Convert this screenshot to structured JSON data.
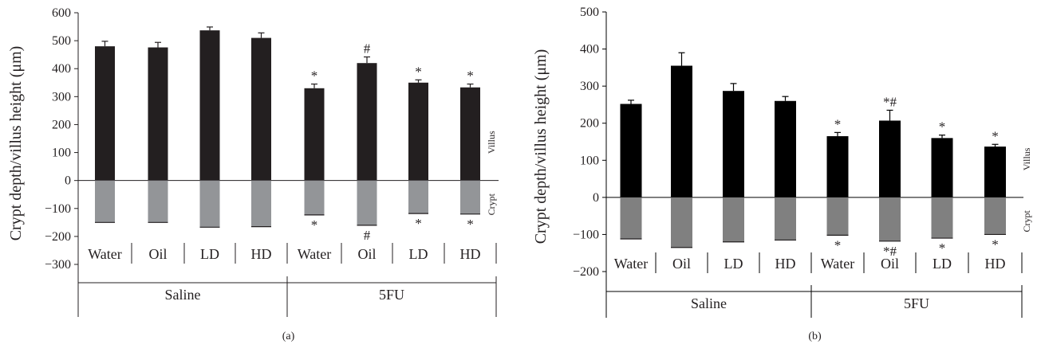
{
  "chart_data": [
    {
      "type": "bar",
      "panel_label": "(a)",
      "ylabel": "Crypt depth/villus height (μm)",
      "ylim": [
        -300,
        600
      ],
      "yticks": [
        600,
        500,
        400,
        300,
        200,
        100,
        0,
        -100,
        -200,
        -300
      ],
      "ytick_labels": [
        "600",
        "500",
        "400",
        "300",
        "200",
        "100",
        "0",
        "−100",
        "−200",
        "−300"
      ],
      "side_labels": {
        "upper": "Villus",
        "lower": "Crypt"
      },
      "categories": [
        "Water",
        "Oil",
        "LD",
        "HD",
        "Water",
        "Oil",
        "LD",
        "HD"
      ],
      "groups": [
        {
          "label": "Saline",
          "span": [
            0,
            3
          ]
        },
        {
          "label": "5FU",
          "span": [
            4,
            7
          ]
        }
      ],
      "series": [
        {
          "name": "Villus",
          "color": "#231f20",
          "values": [
            480,
            476,
            537,
            510,
            330,
            420,
            350,
            333
          ],
          "errors": [
            18,
            18,
            12,
            18,
            15,
            22,
            10,
            12
          ],
          "marks": [
            "",
            "",
            "",
            "",
            "*",
            "#",
            "*",
            "*"
          ]
        },
        {
          "name": "Crypt",
          "color": "#939598",
          "values": [
            -150,
            -150,
            -167,
            -165,
            -123,
            -160,
            -118,
            -120
          ],
          "errors": [
            0,
            0,
            0,
            0,
            0,
            0,
            0,
            0
          ],
          "marks": [
            "",
            "",
            "",
            "",
            "*",
            "#",
            "*",
            "*"
          ]
        }
      ]
    },
    {
      "type": "bar",
      "panel_label": "(b)",
      "ylabel": "Crypt depth/villus height (μm)",
      "ylim": [
        -200,
        500
      ],
      "yticks": [
        500,
        400,
        300,
        200,
        100,
        0,
        -100,
        -200
      ],
      "ytick_labels": [
        "500",
        "400",
        "300",
        "200",
        "100",
        "0",
        "−100",
        "−200"
      ],
      "side_labels": {
        "upper": "Villus",
        "lower": "Crypt"
      },
      "categories": [
        "Water",
        "Oil",
        "LD",
        "HD",
        "Water",
        "Oil",
        "LD",
        "HD"
      ],
      "groups": [
        {
          "label": "Saline",
          "span": [
            0,
            3
          ]
        },
        {
          "label": "5FU",
          "span": [
            4,
            7
          ]
        }
      ],
      "series": [
        {
          "name": "Villus",
          "color": "#000000",
          "values": [
            252,
            355,
            287,
            260,
            165,
            207,
            160,
            137
          ],
          "errors": [
            10,
            35,
            20,
            12,
            10,
            28,
            8,
            6
          ],
          "marks": [
            "",
            "",
            "",
            "",
            "*",
            "*#",
            "*",
            "*"
          ]
        },
        {
          "name": "Crypt",
          "color": "#808080",
          "values": [
            -112,
            -135,
            -120,
            -115,
            -102,
            -118,
            -110,
            -100
          ],
          "errors": [
            0,
            0,
            0,
            0,
            0,
            0,
            0,
            0
          ],
          "marks": [
            "",
            "",
            "",
            "",
            "*",
            "*#",
            "*",
            "*"
          ]
        }
      ]
    }
  ]
}
